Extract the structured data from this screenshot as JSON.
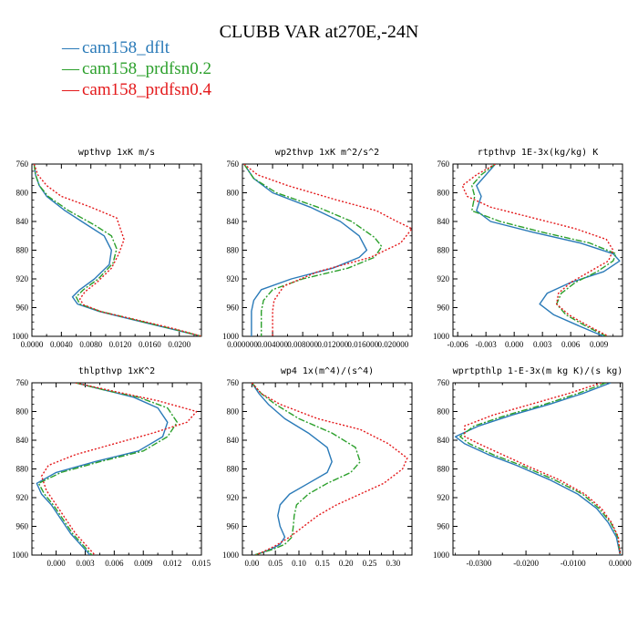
{
  "figure": {
    "title": "CLUBB VAR at270E,-24N"
  },
  "legend": [
    {
      "label": "cam158_dflt",
      "color": "#2a7ab8"
    },
    {
      "label": "cam158_prdfsn0.2",
      "color": "#2ca02c"
    },
    {
      "label": "cam158_prdfsn0.4",
      "color": "#e41a1c"
    }
  ],
  "chart_data": [
    {
      "type": "line",
      "title": "wpthvp   1xK m/s",
      "xlim": [
        0,
        0.023
      ],
      "ylim": [
        760,
        1000
      ],
      "x_ticks": [
        0,
        0.004,
        0.008,
        0.012,
        0.016,
        0.02
      ],
      "x_tick_labels": [
        "0.0000",
        "0.0040",
        "0.0080",
        "0.0120",
        "0.0160",
        "0.0200"
      ],
      "y_ticks": [
        760,
        800,
        840,
        880,
        920,
        960,
        1000
      ],
      "y_tick_labels": [
        "760",
        "800",
        "840",
        "880",
        "920",
        "960",
        "1000"
      ],
      "series": [
        {
          "name": "cam158_dflt",
          "x": [
            0.0003,
            0.0005,
            0.001,
            0.002,
            0.0045,
            0.0075,
            0.0098,
            0.0108,
            0.0105,
            0.0085,
            0.0065,
            0.0055,
            0.0062,
            0.009,
            0.015,
            0.019,
            0.023
          ],
          "y": [
            760,
            775,
            790,
            805,
            825,
            845,
            860,
            880,
            900,
            920,
            935,
            945,
            955,
            965,
            980,
            990,
            1000
          ]
        },
        {
          "name": "cam158_prdfsn0.2",
          "x": [
            0.0003,
            0.0005,
            0.001,
            0.0022,
            0.005,
            0.0085,
            0.0108,
            0.0115,
            0.011,
            0.009,
            0.007,
            0.006,
            0.0065,
            0.0092,
            0.0152,
            0.0192,
            0.023
          ],
          "y": [
            760,
            775,
            790,
            805,
            825,
            845,
            860,
            878,
            898,
            920,
            935,
            945,
            955,
            965,
            980,
            990,
            1000
          ]
        },
        {
          "name": "cam158_prdfsn0.4",
          "x": [
            0.0003,
            0.0008,
            0.002,
            0.004,
            0.008,
            0.0115,
            0.0125,
            0.0118,
            0.0108,
            0.0088,
            0.0072,
            0.0065,
            0.007,
            0.0095,
            0.0155,
            0.0195,
            0.023
          ],
          "y": [
            760,
            775,
            790,
            805,
            820,
            835,
            865,
            885,
            905,
            925,
            938,
            948,
            956,
            966,
            980,
            990,
            1000
          ]
        }
      ]
    },
    {
      "type": "line",
      "title": "wp2thvp   1xK m^2/s^2",
      "xlim": [
        0,
        0.0225
      ],
      "ylim": [
        760,
        1000
      ],
      "x_ticks": [
        0,
        0.004,
        0.008,
        0.012,
        0.016,
        0.02
      ],
      "x_tick_labels": [
        "0.000000",
        "0.004000",
        "0.008000",
        "0.012000",
        "0.016000",
        "0.020000"
      ],
      "y_ticks": [
        760,
        800,
        840,
        880,
        920,
        960,
        1000
      ],
      "y_tick_labels": [
        "760",
        "800",
        "840",
        "880",
        "920",
        "960",
        "1000"
      ],
      "series": [
        {
          "name": "cam158_dflt",
          "x": [
            0.0002,
            0.0015,
            0.004,
            0.009,
            0.013,
            0.0155,
            0.0165,
            0.0155,
            0.012,
            0.0065,
            0.0025,
            0.0015,
            0.0012,
            0.0012,
            0.0012
          ],
          "y": [
            760,
            780,
            800,
            820,
            840,
            860,
            880,
            890,
            905,
            920,
            935,
            950,
            965,
            985,
            1000
          ]
        },
        {
          "name": "cam158_prdfsn0.2",
          "x": [
            0.0002,
            0.0015,
            0.0045,
            0.01,
            0.0145,
            0.0175,
            0.0185,
            0.0175,
            0.014,
            0.008,
            0.004,
            0.0028,
            0.0025,
            0.0025,
            0.0025
          ],
          "y": [
            760,
            780,
            800,
            820,
            840,
            862,
            875,
            890,
            905,
            920,
            935,
            950,
            965,
            985,
            1000
          ]
        },
        {
          "name": "cam158_prdfsn0.4",
          "x": [
            0.0002,
            0.002,
            0.006,
            0.0125,
            0.0178,
            0.0205,
            0.0225,
            0.021,
            0.017,
            0.01,
            0.0055,
            0.0042,
            0.004,
            0.004,
            0.004
          ],
          "y": [
            760,
            775,
            790,
            810,
            825,
            840,
            850,
            870,
            890,
            910,
            930,
            950,
            965,
            985,
            1000
          ]
        }
      ]
    },
    {
      "type": "line",
      "title": "rtpthvp   1E-3x(kg/kg) K",
      "xlim": [
        -0.0065,
        0.0115
      ],
      "ylim": [
        760,
        1000
      ],
      "x_ticks": [
        -0.006,
        -0.003,
        0,
        0.003,
        0.006,
        0.009
      ],
      "x_tick_labels": [
        "-0.006",
        "-0.003",
        "0.000",
        "0.003",
        "0.006",
        "0.009"
      ],
      "y_ticks": [
        760,
        800,
        840,
        880,
        920,
        960,
        1000
      ],
      "y_tick_labels": [
        "760",
        "800",
        "840",
        "880",
        "920",
        "960",
        "1000"
      ],
      "series": [
        {
          "name": "cam158_dflt",
          "x": [
            -0.002,
            -0.003,
            -0.004,
            -0.0035,
            -0.004,
            -0.0025,
            0.002,
            0.007,
            0.0105,
            0.0112,
            0.0095,
            0.006,
            0.0035,
            0.0027,
            0.0042,
            0.0068,
            0.0095
          ],
          "y": [
            760,
            775,
            790,
            805,
            825,
            840,
            855,
            870,
            885,
            895,
            910,
            925,
            940,
            955,
            970,
            985,
            1000
          ]
        },
        {
          "name": "cam158_prdfsn0.2",
          "x": [
            -0.002,
            -0.0035,
            -0.0045,
            -0.0042,
            -0.0045,
            -0.0015,
            0.003,
            0.008,
            0.0108,
            0.0105,
            0.0088,
            0.0065,
            0.005,
            0.0045,
            0.0055,
            0.0075,
            0.0098
          ],
          "y": [
            760,
            775,
            790,
            805,
            825,
            840,
            855,
            870,
            885,
            895,
            910,
            925,
            940,
            955,
            970,
            985,
            1000
          ]
        },
        {
          "name": "cam158_prdfsn0.4",
          "x": [
            -0.002,
            -0.004,
            -0.0055,
            -0.005,
            -0.0025,
            0.002,
            0.0065,
            0.0098,
            0.0105,
            0.01,
            0.008,
            0.006,
            0.0047,
            0.0045,
            0.0058,
            0.0078,
            0.01
          ],
          "y": [
            760,
            775,
            790,
            805,
            820,
            835,
            850,
            865,
            880,
            895,
            910,
            925,
            940,
            955,
            970,
            985,
            1000
          ]
        }
      ]
    },
    {
      "type": "line",
      "title": "thlpthvp   1xK^2",
      "xlim": [
        -0.0025,
        0.015
      ],
      "ylim": [
        760,
        1000
      ],
      "x_ticks": [
        0,
        0.003,
        0.006,
        0.009,
        0.012,
        0.015
      ],
      "x_tick_labels": [
        "0.000",
        "0.003",
        "0.006",
        "0.009",
        "0.012",
        "0.015"
      ],
      "y_ticks": [
        760,
        800,
        840,
        880,
        920,
        960,
        1000
      ],
      "y_tick_labels": [
        "760",
        "800",
        "840",
        "880",
        "920",
        "960",
        "1000"
      ],
      "series": [
        {
          "name": "cam158_dflt",
          "x": [
            0.002,
            0.005,
            0.008,
            0.0105,
            0.0115,
            0.011,
            0.0085,
            0.004,
            0,
            -0.002,
            -0.0015,
            -0.0005,
            0.0005,
            0.0015,
            0.0025,
            0.0035
          ],
          "y": [
            760,
            770,
            780,
            795,
            815,
            835,
            855,
            870,
            885,
            900,
            915,
            930,
            950,
            970,
            985,
            1000
          ]
        },
        {
          "name": "cam158_prdfsn0.2",
          "x": [
            0.002,
            0.005,
            0.0085,
            0.0115,
            0.0125,
            0.0115,
            0.009,
            0.0045,
            0.0005,
            -0.0018,
            -0.0012,
            -0.0003,
            0.0007,
            0.0017,
            0.0027,
            0.0037
          ],
          "y": [
            760,
            770,
            780,
            795,
            815,
            835,
            855,
            870,
            885,
            900,
            915,
            930,
            950,
            970,
            985,
            1000
          ]
        },
        {
          "name": "cam158_prdfsn0.4",
          "x": [
            0.002,
            0.006,
            0.0105,
            0.0145,
            0.0135,
            0.01,
            0.006,
            0.002,
            -0.0008,
            -0.0015,
            -0.001,
            0,
            0.001,
            0.002,
            0.003,
            0.004
          ],
          "y": [
            760,
            772,
            785,
            800,
            815,
            830,
            845,
            860,
            875,
            890,
            910,
            930,
            950,
            970,
            985,
            1000
          ]
        }
      ]
    },
    {
      "type": "line",
      "title": "wp4   1x(m^4)/(s^4)",
      "xlim": [
        -0.02,
        0.34
      ],
      "ylim": [
        760,
        1000
      ],
      "x_ticks": [
        0,
        0.05,
        0.1,
        0.15,
        0.2,
        0.25,
        0.3
      ],
      "x_tick_labels": [
        "0.00",
        "0.05",
        "0.10",
        "0.15",
        "0.20",
        "0.25",
        "0.30"
      ],
      "y_ticks": [
        760,
        800,
        840,
        880,
        920,
        960,
        1000
      ],
      "y_tick_labels": [
        "760",
        "800",
        "840",
        "880",
        "920",
        "960",
        "1000"
      ],
      "series": [
        {
          "name": "cam158_dflt",
          "x": [
            0.0,
            0.015,
            0.035,
            0.07,
            0.12,
            0.16,
            0.17,
            0.16,
            0.12,
            0.08,
            0.06,
            0.055,
            0.06,
            0.07,
            0.06,
            0.04,
            0.02,
            0.005
          ],
          "y": [
            760,
            775,
            790,
            810,
            830,
            850,
            870,
            885,
            900,
            915,
            930,
            945,
            960,
            975,
            985,
            992,
            997,
            1000
          ]
        },
        {
          "name": "cam158_prdfsn0.2",
          "x": [
            0.0,
            0.02,
            0.05,
            0.1,
            0.17,
            0.22,
            0.23,
            0.21,
            0.16,
            0.12,
            0.095,
            0.09,
            0.088,
            0.085,
            0.07,
            0.045,
            0.02,
            0.005
          ],
          "y": [
            760,
            775,
            790,
            810,
            830,
            850,
            870,
            885,
            900,
            915,
            930,
            945,
            960,
            975,
            985,
            992,
            997,
            1000
          ]
        },
        {
          "name": "cam158_prdfsn0.4",
          "x": [
            0.0,
            0.02,
            0.06,
            0.14,
            0.23,
            0.29,
            0.33,
            0.32,
            0.28,
            0.23,
            0.18,
            0.14,
            0.11,
            0.08,
            0.05,
            0.025,
            0.008
          ],
          "y": [
            760,
            775,
            790,
            810,
            825,
            845,
            865,
            880,
            900,
            915,
            930,
            945,
            960,
            975,
            987,
            995,
            1000
          ]
        }
      ]
    },
    {
      "type": "line",
      "title": "wprtpthlp   1-E-3x(m kg K)/(s kg)",
      "xlim": [
        -0.0355,
        0.0005
      ],
      "ylim": [
        760,
        1000
      ],
      "x_ticks": [
        -0.03,
        -0.02,
        -0.01,
        0
      ],
      "x_tick_labels": [
        "-0.0300",
        "-0.0200",
        "-0.0100",
        "0.0000"
      ],
      "y_ticks": [
        760,
        800,
        840,
        880,
        920,
        960,
        1000
      ],
      "y_tick_labels": [
        "760",
        "800",
        "840",
        "880",
        "920",
        "960",
        "1000"
      ],
      "series": [
        {
          "name": "cam158_dflt",
          "x": [
            -0.002,
            -0.008,
            -0.015,
            -0.023,
            -0.03,
            -0.035,
            -0.033,
            -0.028,
            -0.022,
            -0.015,
            -0.009,
            -0.005,
            -0.0025,
            -0.0008,
            0
          ],
          "y": [
            760,
            775,
            790,
            805,
            820,
            835,
            845,
            860,
            875,
            895,
            915,
            935,
            955,
            975,
            1000
          ]
        },
        {
          "name": "cam158_prdfsn0.2",
          "x": [
            -0.003,
            -0.009,
            -0.016,
            -0.024,
            -0.031,
            -0.034,
            -0.032,
            -0.027,
            -0.021,
            -0.014,
            -0.008,
            -0.0045,
            -0.002,
            -0.0005,
            0
          ],
          "y": [
            760,
            775,
            790,
            805,
            820,
            835,
            845,
            860,
            875,
            895,
            915,
            935,
            955,
            975,
            1000
          ]
        },
        {
          "name": "cam158_prdfsn0.4",
          "x": [
            -0.004,
            -0.011,
            -0.019,
            -0.027,
            -0.033,
            -0.033,
            -0.03,
            -0.025,
            -0.02,
            -0.013,
            -0.0075,
            -0.004,
            -0.0018,
            -0.0004,
            0
          ],
          "y": [
            760,
            775,
            790,
            805,
            820,
            835,
            845,
            860,
            875,
            895,
            915,
            935,
            955,
            975,
            1000
          ]
        }
      ]
    }
  ]
}
